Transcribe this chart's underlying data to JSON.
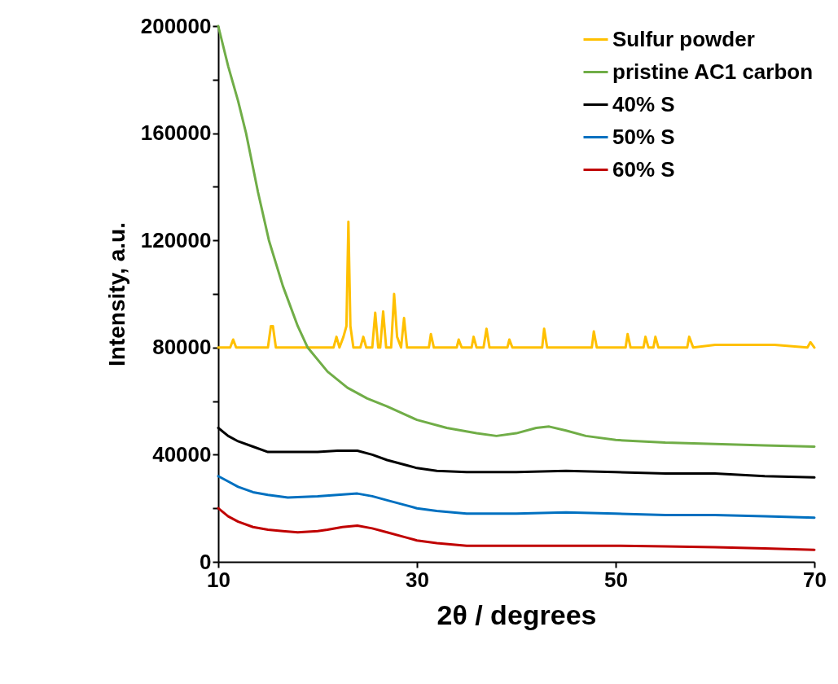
{
  "chart_data": {
    "type": "line",
    "xlabel": "2θ / degrees",
    "ylabel": "Intensity, a.u.",
    "xlim": [
      10,
      70
    ],
    "xticks": [
      10,
      30,
      50,
      70
    ],
    "ylim": [
      0,
      200000
    ],
    "yticks": [
      0,
      {
        "value": 20000,
        "label": null
      },
      40000,
      {
        "value": 60000,
        "label": null
      },
      80000,
      {
        "value": 100000,
        "label": null
      },
      120000,
      {
        "value": 140000,
        "label": null
      },
      160000,
      {
        "value": 180000,
        "label": null
      },
      200000
    ],
    "grid": false,
    "legend": "top right",
    "line_style": "solid",
    "series": [
      {
        "name": "Sulfur powder",
        "color": "#ffc000",
        "x": [
          10,
          11.2,
          11.5,
          11.8,
          15,
          15.3,
          15.5,
          15.8,
          21.6,
          21.9,
          22.2,
          22.6,
          22.9,
          23.1,
          23.3,
          23.6,
          24.3,
          24.6,
          24.9,
          25.5,
          25.8,
          26.1,
          26.3,
          26.6,
          26.9,
          27.4,
          27.7,
          28.0,
          28.4,
          28.7,
          29.0,
          31.2,
          31.4,
          31.7,
          34,
          34.2,
          34.5,
          35.5,
          35.7,
          36,
          36.7,
          37,
          37.3,
          39.1,
          39.3,
          39.6,
          42.6,
          42.8,
          43.1,
          47.6,
          47.8,
          48.1,
          51,
          51.2,
          51.5,
          52.8,
          53,
          53.3,
          53.8,
          54,
          54.3,
          57.2,
          57.4,
          57.8,
          60,
          63,
          66,
          69.3,
          69.6,
          70
        ],
        "values": [
          80000,
          80000,
          83000,
          80000,
          80000,
          88000,
          88000,
          80000,
          80000,
          84000,
          80000,
          84000,
          88000,
          127000,
          88000,
          80000,
          80000,
          84000,
          80000,
          80000,
          93000,
          80000,
          80000,
          93500,
          80000,
          80000,
          100000,
          84000,
          80000,
          91000,
          80000,
          80000,
          85000,
          80000,
          80000,
          83000,
          80000,
          80000,
          84000,
          80000,
          80000,
          87000,
          80000,
          80000,
          83000,
          80000,
          80000,
          87000,
          80000,
          80000,
          86000,
          80000,
          80000,
          85000,
          80000,
          80000,
          84000,
          80000,
          80000,
          84000,
          80000,
          80000,
          84000,
          80000,
          81000,
          81000,
          81000,
          80000,
          82000,
          80000
        ]
      },
      {
        "name": "pristine AC1 carbon",
        "color": "#70ad47",
        "x": [
          10,
          11,
          12,
          12.8,
          14,
          15.1,
          16.5,
          18,
          19,
          21,
          23,
          25,
          27,
          30,
          33,
          36,
          38,
          40,
          42,
          43.3,
          45,
          47,
          50,
          55,
          60,
          65,
          70
        ],
        "values": [
          200000,
          185000,
          172000,
          160000,
          138000,
          120000,
          103000,
          88000,
          80000,
          71000,
          65000,
          61000,
          58000,
          53000,
          50000,
          48000,
          47000,
          48000,
          50000,
          50500,
          49000,
          47000,
          45500,
          44500,
          44000,
          43500,
          43000
        ]
      },
      {
        "name": "40% S",
        "color": "#000000",
        "x": [
          10,
          11,
          12,
          13.5,
          15,
          17,
          20,
          22,
          24,
          25.5,
          27,
          29,
          30,
          32,
          35,
          40,
          45,
          50,
          55,
          60,
          65,
          70
        ],
        "values": [
          50000,
          47000,
          45000,
          43000,
          41000,
          41000,
          41000,
          41500,
          41500,
          40000,
          38000,
          36000,
          35000,
          34000,
          33500,
          33500,
          34000,
          33500,
          33000,
          33000,
          32000,
          31500
        ]
      },
      {
        "name": "50% S",
        "color": "#0070c0",
        "x": [
          10,
          11,
          12,
          13.5,
          15,
          17,
          20,
          22,
          24,
          25.5,
          27,
          29,
          30,
          32,
          35,
          40,
          45,
          50,
          55,
          60,
          65,
          70
        ],
        "values": [
          32000,
          30000,
          28000,
          26000,
          25000,
          24000,
          24500,
          25000,
          25500,
          24500,
          23000,
          21000,
          20000,
          19000,
          18000,
          18000,
          18500,
          18000,
          17500,
          17500,
          17000,
          16500
        ]
      },
      {
        "name": "60% S",
        "color": "#c00000",
        "x": [
          10,
          11,
          12,
          13.5,
          15,
          16.5,
          18,
          20,
          21,
          22.5,
          24,
          25.5,
          27,
          29,
          30,
          32,
          35,
          40,
          45,
          50,
          55,
          60,
          65,
          70
        ],
        "values": [
          20000,
          17000,
          15000,
          13000,
          12000,
          11500,
          11000,
          11500,
          12000,
          13000,
          13500,
          12500,
          11000,
          9000,
          8000,
          7000,
          6000,
          6000,
          6000,
          6000,
          5800,
          5500,
          5000,
          4500
        ]
      }
    ]
  }
}
